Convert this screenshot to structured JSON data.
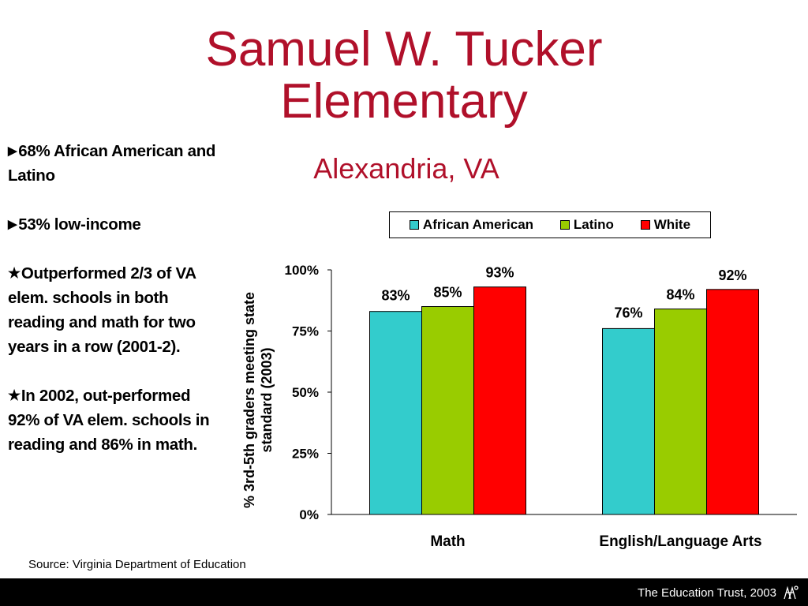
{
  "slide": {
    "title_line1": "Samuel W. Tucker",
    "title_line2": "Elementary",
    "subtitle": "Alexandria, VA"
  },
  "bullets": [
    {
      "marker": "arrow-right-icon",
      "text": "68% African American and Latino"
    },
    {
      "marker": "arrow-right-icon",
      "text": "53% low-income"
    },
    {
      "marker": "star-icon",
      "text": "Outperformed 2/3 of VA elem. schools in both reading and math for two years in a row (2001-2)."
    },
    {
      "marker": "star-icon",
      "text": "In 2002, out-performed 92% of VA elem. schools in reading and 86% in math."
    }
  ],
  "chart_data": {
    "type": "bar",
    "categories": [
      "Math",
      "English/Language Arts"
    ],
    "series": [
      {
        "name": "African American",
        "color": "#33cccc",
        "values": [
          83,
          76
        ]
      },
      {
        "name": "Latino",
        "color": "#99cc00",
        "values": [
          85,
          84
        ]
      },
      {
        "name": "White",
        "color": "#ff0000",
        "values": [
          93,
          92
        ]
      }
    ],
    "ylabel": "% 3rd-5th graders meeting state standard (2003)",
    "yticks": [
      "0%",
      "25%",
      "50%",
      "75%",
      "100%"
    ],
    "ylim": [
      0,
      100
    ],
    "data_labels": true,
    "legend_position": "top",
    "grid": false
  },
  "source": "Source: Virginia Department of Education",
  "footer": {
    "text": "The Education Trust, 2003",
    "logo": "education-trust-logo"
  }
}
